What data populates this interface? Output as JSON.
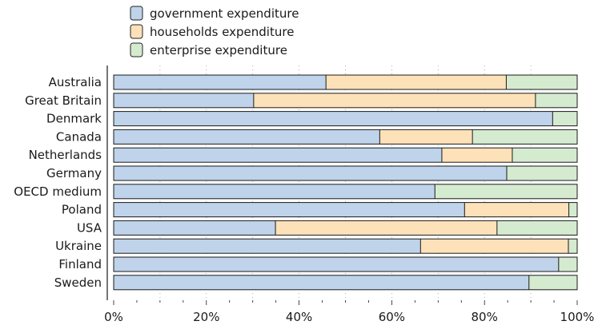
{
  "chart_data": {
    "type": "bar",
    "orientation": "horizontal",
    "stacked": true,
    "categories": [
      "Australia",
      "Great Britain",
      "Denmark",
      "Canada",
      "Netherlands",
      "Germany",
      "OECD medium",
      "Poland",
      "USA",
      "Ukraine",
      "Finland",
      "Sweden"
    ],
    "series": [
      {
        "name": "government expenditure",
        "color": "#bfd3ea",
        "values": [
          45.8,
          30.2,
          94.7,
          57.4,
          70.8,
          84.8,
          69.3,
          75.7,
          34.9,
          66.2,
          96.0,
          89.6
        ]
      },
      {
        "name": "households expenditure",
        "color": "#fde1b8",
        "values": [
          38.9,
          60.8,
          0,
          20.0,
          15.2,
          0,
          0,
          22.5,
          47.8,
          31.9,
          0,
          0
        ]
      },
      {
        "name": "enterprise expenditure",
        "color": "#d5ebd0",
        "values": [
          15.3,
          9.0,
          5.3,
          22.6,
          14.0,
          15.2,
          30.7,
          1.8,
          17.3,
          1.9,
          4.0,
          10.4
        ]
      }
    ],
    "x_ticks": [
      "0%",
      "20%",
      "40%",
      "60%",
      "80%",
      "100%"
    ],
    "xlim": [
      0,
      100
    ],
    "grid": true,
    "legend_position": "top-left",
    "title": "",
    "xlabel": "",
    "ylabel": ""
  }
}
